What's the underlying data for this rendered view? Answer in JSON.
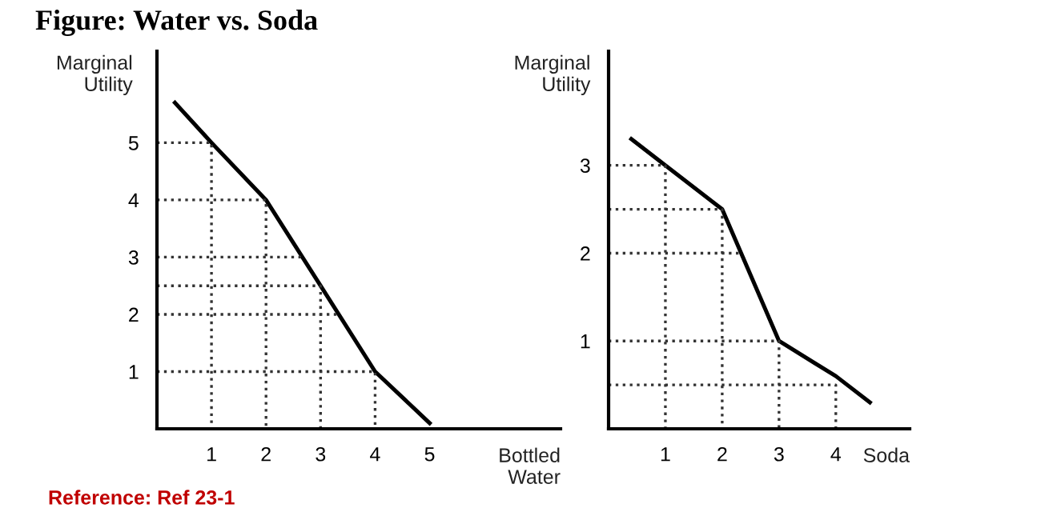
{
  "chart_data": [
    {
      "type": "line",
      "title": "Figure: Water vs. Soda",
      "annotations": [
        "Reference: Ref 23-1"
      ],
      "ylabel": "Marginal\nUtility",
      "xlabel": "Bottled\nWater",
      "xlim": [
        0,
        7.4
      ],
      "ylim": [
        0,
        6.6
      ],
      "xticks": [
        1,
        2,
        3,
        4,
        5
      ],
      "yticks": [
        1,
        2,
        3,
        4,
        5
      ],
      "grid": false,
      "legend": false,
      "series": [
        {
          "color": "#000000",
          "line_style": "solid",
          "x": [
            0.33,
            1,
            2,
            3,
            4,
            5
          ],
          "values": [
            5.7,
            5,
            4,
            2.5,
            1,
            0.1
          ]
        },
        {
          "color": "#333333",
          "line_style": "dotted",
          "x": [
            0,
            1,
            1
          ],
          "values": [
            5,
            5,
            0
          ]
        },
        {
          "color": "#333333",
          "line_style": "dotted",
          "x": [
            0,
            2,
            2
          ],
          "values": [
            4,
            4,
            0
          ]
        },
        {
          "color": "#333333",
          "line_style": "dotted",
          "x": [
            0,
            3,
            3
          ],
          "values": [
            2.5,
            2.5,
            0
          ]
        },
        {
          "color": "#333333",
          "line_style": "dotted",
          "x": [
            0,
            4,
            4
          ],
          "values": [
            1,
            1,
            0
          ]
        },
        {
          "color": "#333333",
          "line_style": "dotted",
          "x": [
            0,
            2.67
          ],
          "values": [
            3,
            3
          ]
        },
        {
          "color": "#333333",
          "line_style": "dotted",
          "x": [
            0,
            3.33
          ],
          "values": [
            2,
            2
          ]
        }
      ]
    },
    {
      "type": "line",
      "ylabel": "Marginal\nUtility",
      "xlabel": "Soda",
      "xlim": [
        0,
        5.3
      ],
      "ylim": [
        0,
        4.3
      ],
      "xticks": [
        1,
        2,
        3,
        4
      ],
      "yticks": [
        1,
        2,
        3
      ],
      "grid": false,
      "legend": false,
      "series": [
        {
          "color": "#000000",
          "line_style": "solid",
          "x": [
            0.4,
            1,
            2,
            3,
            4,
            4.6
          ],
          "values": [
            3.3,
            3,
            2.5,
            1,
            0.6,
            0.3
          ]
        },
        {
          "color": "#333333",
          "line_style": "dotted",
          "x": [
            0,
            1,
            1
          ],
          "values": [
            3,
            3,
            0
          ]
        },
        {
          "color": "#333333",
          "line_style": "dotted",
          "x": [
            0,
            2,
            2
          ],
          "values": [
            2.5,
            2.5,
            0
          ]
        },
        {
          "color": "#333333",
          "line_style": "dotted",
          "x": [
            0,
            3,
            3
          ],
          "values": [
            1,
            1,
            0
          ]
        },
        {
          "color": "#333333",
          "line_style": "dotted",
          "x": [
            0,
            4,
            4
          ],
          "values": [
            0.5,
            0.5,
            0
          ]
        },
        {
          "color": "#333333",
          "line_style": "dotted",
          "x": [
            0,
            2.33
          ],
          "values": [
            2,
            2
          ]
        }
      ]
    }
  ]
}
